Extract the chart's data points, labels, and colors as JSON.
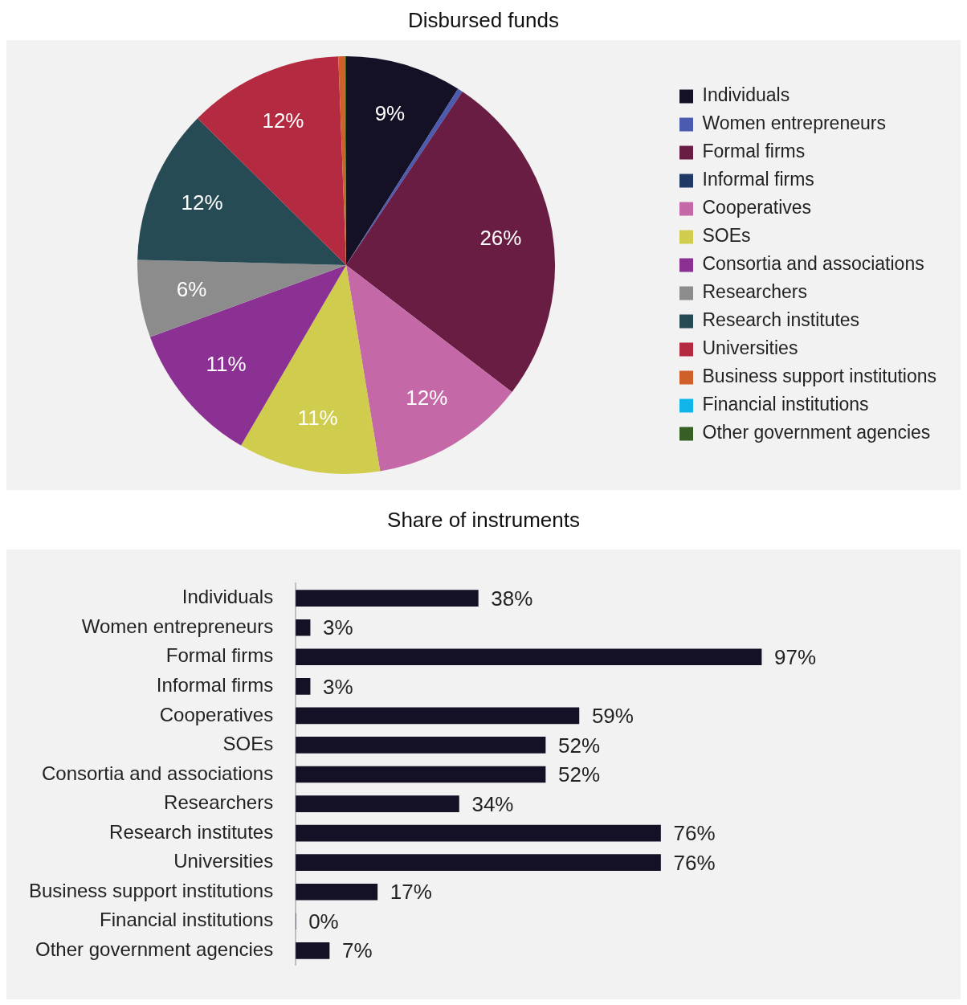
{
  "chart_data": [
    {
      "type": "pie",
      "title": "Disbursed funds",
      "legend": "right",
      "categories": [
        "Individuals",
        "Women entrepreneurs",
        "Formal firms",
        "Informal firms",
        "Cooperatives",
        "SOEs",
        "Consortia and associations",
        "Researchers",
        "Research institutes",
        "Universities",
        "Business support institutions",
        "Financial institutions",
        "Other government agencies"
      ],
      "values": [
        9,
        0.4,
        26,
        0,
        12,
        11,
        11,
        6,
        12,
        12,
        0.5,
        0,
        0.1
      ],
      "value_labels": [
        "9%",
        null,
        "26%",
        null,
        "12%",
        "11%",
        "11%",
        "6%",
        "12%",
        "12%",
        null,
        null,
        null
      ],
      "colors": [
        "#141126",
        "#4a5bb0",
        "#6a1d42",
        "#1f3864",
        "#c468a8",
        "#d0cc4d",
        "#8b3193",
        "#8c8c8c",
        "#274b55",
        "#b42a40",
        "#d0602a",
        "#12b5ea",
        "#375e23"
      ]
    },
    {
      "type": "bar",
      "title": "Share of instruments",
      "orientation": "horizontal",
      "tick_labels": "y",
      "categories": [
        "Individuals",
        "Women entrepreneurs",
        "Formal firms",
        "Informal firms",
        "Cooperatives",
        "SOEs",
        "Consortia and associations",
        "Researchers",
        "Research institutes",
        "Universities",
        "Business support institutions",
        "Financial institutions",
        "Other government agencies"
      ],
      "values": [
        38,
        3,
        97,
        3,
        59,
        52,
        52,
        34,
        76,
        76,
        17,
        0,
        7
      ],
      "value_labels": [
        "38%",
        "3%",
        "97%",
        "3%",
        "59%",
        "52%",
        "52%",
        "34%",
        "76%",
        "76%",
        "17%",
        "0%",
        "7%"
      ],
      "color": "#141126"
    }
  ]
}
